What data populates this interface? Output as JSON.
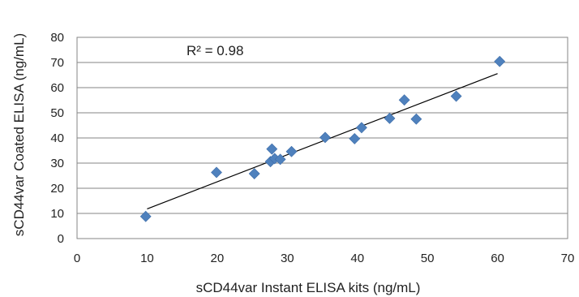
{
  "chart_data": {
    "type": "scatter",
    "title": "",
    "xlabel": "sCD44var Instant ELISA kits (ng/mL)",
    "ylabel": "sCD44var Coated ELISA (ng/mL)",
    "xlim": [
      0,
      70
    ],
    "ylim": [
      0,
      80
    ],
    "x_ticks": [
      0,
      10,
      20,
      30,
      40,
      50,
      60,
      70
    ],
    "y_ticks": [
      0,
      10,
      20,
      30,
      40,
      50,
      60,
      70,
      80
    ],
    "grid": true,
    "legend": "none",
    "marker_color": "#4F81BD",
    "trendline_color": "#000000",
    "annotation": "R² = 0.98",
    "trendline": {
      "x": [
        10,
        60
      ],
      "y": [
        11.8,
        65.6
      ]
    },
    "x": [
      9.8,
      19.9,
      25.3,
      27.6,
      27.8,
      28.2,
      29.0,
      30.6,
      35.4,
      39.6,
      40.6,
      44.6,
      46.7,
      48.4,
      54.1,
      60.3
    ],
    "y": [
      8.8,
      26.3,
      25.8,
      30.6,
      35.6,
      31.8,
      31.5,
      34.6,
      40.2,
      39.7,
      44.1,
      47.8,
      55.1,
      47.5,
      56.6,
      70.4
    ]
  }
}
